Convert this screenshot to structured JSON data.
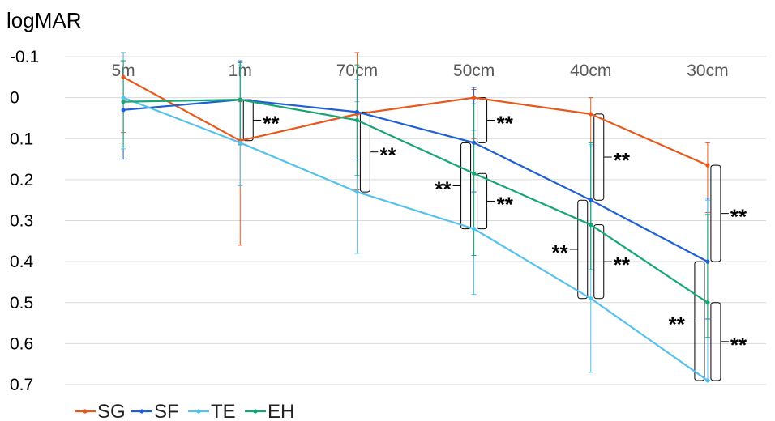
{
  "chart_data": {
    "type": "line",
    "title": "",
    "ylabel": "logMAR",
    "xlabel": "",
    "y_inverted": true,
    "ylim": [
      -0.1,
      0.7
    ],
    "ytick_step": 0.1,
    "ytick_labels": [
      "-0.1",
      "0",
      "0.1",
      "0.2",
      "0.3",
      "0.4",
      "0.5",
      "0.6",
      "0.7"
    ],
    "grid": true,
    "legend_position": "bottom-left",
    "categories": [
      "5m",
      "1m",
      "70cm",
      "50cm",
      "40cm",
      "30cm"
    ],
    "series": [
      {
        "name": "SG",
        "color": "#e8581c",
        "values": [
          -0.05,
          0.105,
          0.04,
          0.0,
          0.04,
          0.165
        ],
        "err_low": [
          0.13,
          0.095,
          0.155,
          0.02,
          0.04,
          0.055
        ],
        "err_high": [
          0.135,
          0.255,
          0.185,
          0.1,
          0.08,
          0.115
        ]
      },
      {
        "name": "SF",
        "color": "#1f5fd6",
        "values": [
          0.03,
          0.005,
          0.035,
          0.11,
          0.25,
          0.4
        ],
        "err_low": [
          0.12,
          0.095,
          0.08,
          0.135,
          0.13,
          0.155
        ],
        "err_high": [
          0.12,
          0.1,
          0.115,
          0.12,
          0.17,
          0.14
        ]
      },
      {
        "name": "TE",
        "color": "#57c1ee",
        "values": [
          0.0,
          0.11,
          0.23,
          0.32,
          0.49,
          0.69
        ],
        "err_low": [
          0.115,
          0.19,
          0.22,
          0.24,
          0.375,
          0.44
        ],
        "err_high": [
          0.125,
          0.105,
          0.15,
          0.16,
          0.18,
          0.0
        ]
      },
      {
        "name": "EH",
        "color": "#17a673",
        "values": [
          0.01,
          0.005,
          0.055,
          0.185,
          0.31,
          0.5
        ],
        "err_low": [
          0.1,
          0.09,
          0.135,
          0.17,
          0.2,
          0.215
        ],
        "err_high": [
          0.11,
          0.11,
          0.135,
          0.2,
          0.11,
          0.085
        ]
      }
    ],
    "significance": [
      {
        "x": 1,
        "y_from": 0.005,
        "y_to": 0.105,
        "label": "**",
        "side": "right"
      },
      {
        "x": 2,
        "y_from": 0.035,
        "y_to": 0.23,
        "label": "**",
        "side": "right"
      },
      {
        "x": 3,
        "y_from": 0.0,
        "y_to": 0.11,
        "label": "**",
        "side": "right"
      },
      {
        "x": 3,
        "y_from": 0.11,
        "y_to": 0.32,
        "label": "**",
        "side": "left"
      },
      {
        "x": 3,
        "y_from": 0.185,
        "y_to": 0.32,
        "label": "**",
        "side": "right"
      },
      {
        "x": 4,
        "y_from": 0.04,
        "y_to": 0.25,
        "label": "**",
        "side": "right"
      },
      {
        "x": 4,
        "y_from": 0.25,
        "y_to": 0.49,
        "label": "**",
        "side": "left"
      },
      {
        "x": 4,
        "y_from": 0.31,
        "y_to": 0.49,
        "label": "**",
        "side": "right"
      },
      {
        "x": 5,
        "y_from": 0.165,
        "y_to": 0.4,
        "label": "**",
        "side": "right"
      },
      {
        "x": 5,
        "y_from": 0.4,
        "y_to": 0.69,
        "label": "**",
        "side": "left"
      },
      {
        "x": 5,
        "y_from": 0.5,
        "y_to": 0.69,
        "label": "**",
        "side": "right"
      }
    ]
  }
}
